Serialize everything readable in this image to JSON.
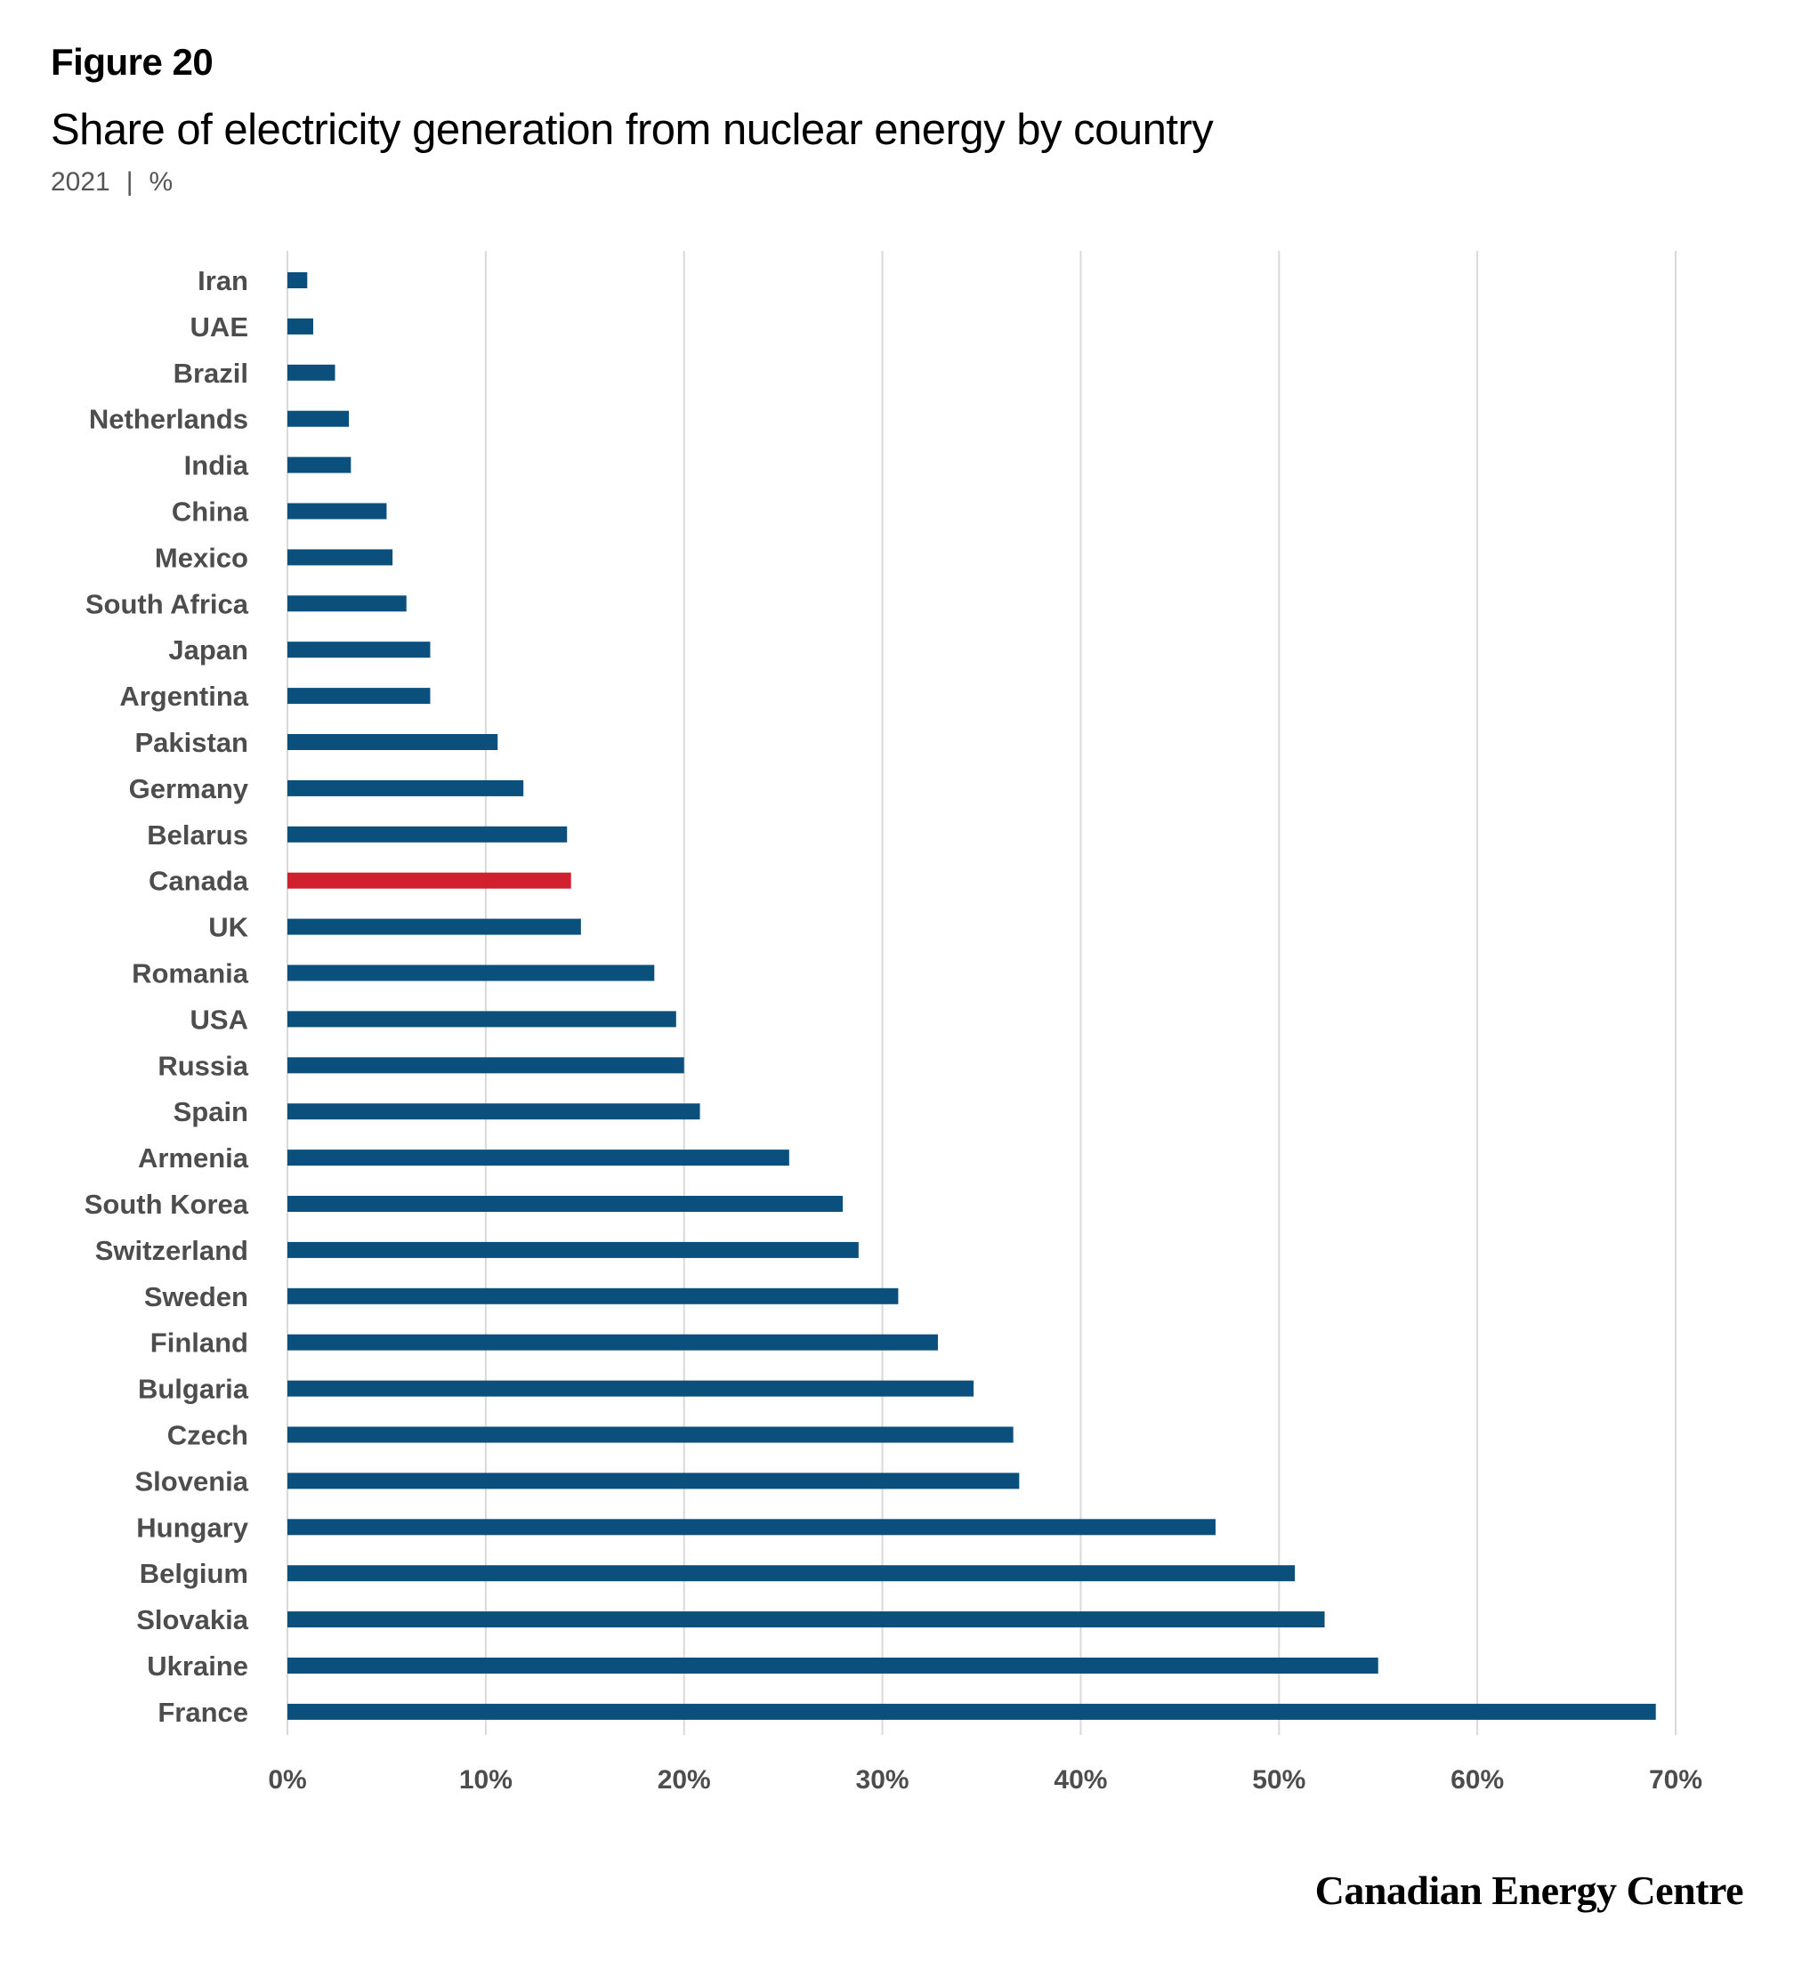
{
  "header": {
    "figure_label": "Figure 20",
    "title": "Share of electricity generation from nuclear energy by country",
    "year": "2021",
    "separator": "|",
    "unit": "%"
  },
  "brand": "Canadian Energy Centre",
  "colors": {
    "bar": "#0b4f7d",
    "highlight": "#d0202e",
    "grid": "#d9d9d9",
    "label": "#4d4d4d"
  },
  "chart_data": {
    "type": "bar",
    "orientation": "horizontal",
    "title": "Share of electricity generation from nuclear energy by country",
    "xlim": [
      0,
      70
    ],
    "grid": true,
    "x_ticks": [
      "0%",
      "10%",
      "20%",
      "30%",
      "40%",
      "50%",
      "60%",
      "70%"
    ],
    "highlight_category": "Canada",
    "categories": [
      "Iran",
      "UAE",
      "Brazil",
      "Netherlands",
      "India",
      "China",
      "Mexico",
      "South Africa",
      "Japan",
      "Argentina",
      "Pakistan",
      "Germany",
      "Belarus",
      "Canada",
      "UK",
      "Romania",
      "USA",
      "Russia",
      "Spain",
      "Armenia",
      "South Korea",
      "Switzerland",
      "Sweden",
      "Finland",
      "Bulgaria",
      "Czech",
      "Slovenia",
      "Hungary",
      "Belgium",
      "Slovakia",
      "Ukraine",
      "France"
    ],
    "values": [
      1.0,
      1.3,
      2.4,
      3.1,
      3.2,
      5.0,
      5.3,
      6.0,
      7.2,
      7.2,
      10.6,
      11.9,
      14.1,
      14.3,
      14.8,
      18.5,
      19.6,
      20.0,
      20.8,
      25.3,
      28.0,
      28.8,
      30.8,
      32.8,
      34.6,
      36.6,
      36.9,
      46.8,
      50.8,
      52.3,
      55.0,
      69.0
    ]
  }
}
